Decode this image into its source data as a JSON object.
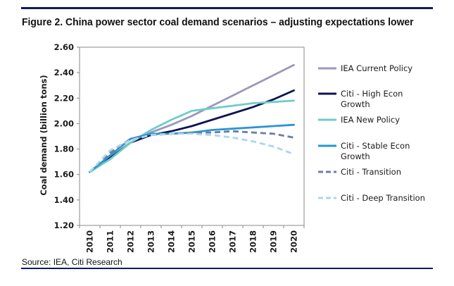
{
  "figure": {
    "title": "Figure 2. China power sector coal demand scenarios – adjusting expectations lower",
    "source": "Source: IEA, Citi Research"
  },
  "chart_data": {
    "type": "line",
    "title": "Figure 2. China power sector coal demand scenarios – adjusting expectations lower",
    "xlabel": "",
    "ylabel": "Coal demand (billion tons)",
    "x": [
      "2010",
      "2011",
      "2012",
      "2013",
      "2014",
      "2015",
      "2016",
      "2017",
      "2018",
      "2019",
      "2020"
    ],
    "ylim": [
      1.2,
      2.6
    ],
    "yticks": [
      "1.20",
      "1.40",
      "1.60",
      "1.80",
      "2.00",
      "2.20",
      "2.40",
      "2.60"
    ],
    "grid": false,
    "legend": "right",
    "series": [
      {
        "name": "IEA Current Policy",
        "color": "#9b97bd",
        "dash": "solid",
        "values": [
          1.62,
          1.73,
          1.85,
          1.93,
          1.99,
          2.06,
          2.14,
          2.22,
          2.3,
          2.38,
          2.46
        ]
      },
      {
        "name": "Citi - High Econ Growth",
        "color": "#0c1453",
        "dash": "solid",
        "values": [
          1.62,
          1.73,
          1.85,
          1.91,
          1.94,
          1.98,
          2.03,
          2.08,
          2.13,
          2.19,
          2.26
        ]
      },
      {
        "name": "IEA New Policy",
        "color": "#6fcdc8",
        "dash": "solid",
        "values": [
          1.62,
          1.72,
          1.85,
          1.95,
          2.03,
          2.1,
          2.12,
          2.14,
          2.16,
          2.17,
          2.18
        ]
      },
      {
        "name": "Citi - Stable Econ Growth",
        "color": "#2896d4",
        "dash": "solid",
        "values": [
          1.62,
          1.75,
          1.88,
          1.92,
          1.92,
          1.93,
          1.95,
          1.96,
          1.97,
          1.98,
          1.99
        ]
      },
      {
        "name": "Citi - Transition",
        "color": "#6b7ca4",
        "dash": "dashed",
        "values": [
          1.62,
          1.77,
          1.88,
          1.91,
          1.92,
          1.93,
          1.93,
          1.94,
          1.93,
          1.92,
          1.89
        ]
      },
      {
        "name": "Citi - Deep Transition",
        "color": "#a7d8ea",
        "dash": "dashed",
        "values": [
          1.62,
          1.79,
          1.87,
          1.91,
          1.92,
          1.92,
          1.91,
          1.89,
          1.86,
          1.82,
          1.76
        ]
      }
    ]
  }
}
